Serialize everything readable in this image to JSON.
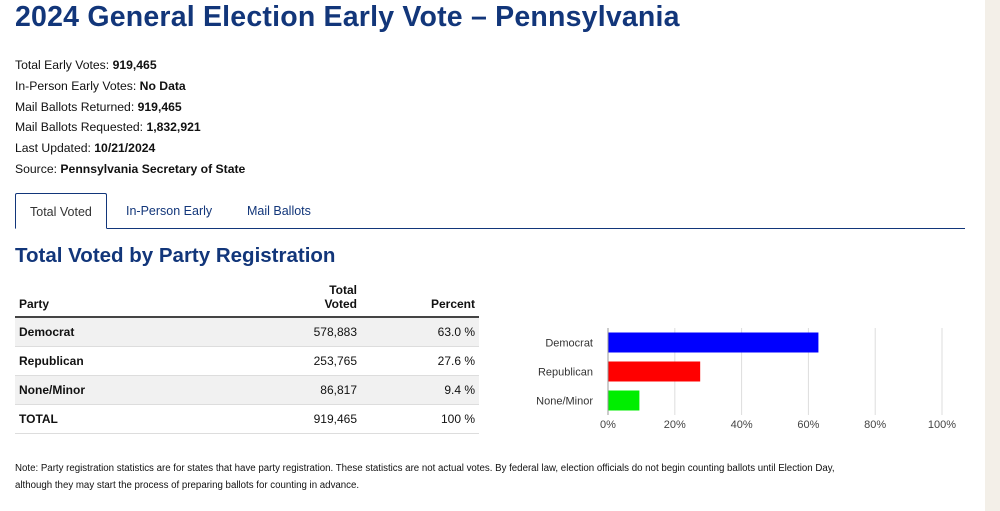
{
  "title": "2024 General Election Early Vote – Pennsylvania",
  "stats": [
    {
      "label": "Total Early Votes:",
      "value": "919,465"
    },
    {
      "label": "In-Person Early Votes:",
      "value": "No Data"
    },
    {
      "label": "Mail Ballots Returned:",
      "value": "919,465"
    },
    {
      "label": "Mail Ballots Requested:",
      "value": "1,832,921"
    },
    {
      "label": "Last Updated:",
      "value": "10/21/2024"
    },
    {
      "label": "Source:",
      "value": "Pennsylvania Secretary of State"
    }
  ],
  "tabs": [
    {
      "label": "Total Voted",
      "active": true
    },
    {
      "label": "In-Person Early",
      "active": false
    },
    {
      "label": "Mail Ballots",
      "active": false
    }
  ],
  "section_title": "Total Voted by Party Registration",
  "table": {
    "headers": {
      "party": "Party",
      "total_line1": "Total",
      "total_line2": "Voted",
      "percent": "Percent"
    },
    "rows": [
      {
        "party": "Democrat",
        "total": "578,883",
        "percent": "63.0 %"
      },
      {
        "party": "Republican",
        "total": "253,765",
        "percent": "27.6 %"
      },
      {
        "party": "None/Minor",
        "total": "86,817",
        "percent": "9.4 %"
      }
    ],
    "total_row": {
      "party": "TOTAL",
      "total": "919,465",
      "percent": "100 %"
    }
  },
  "chart_data": {
    "type": "bar",
    "orientation": "horizontal",
    "categories": [
      "Democrat",
      "Republican",
      "None/Minor"
    ],
    "values": [
      63.0,
      27.6,
      9.4
    ],
    "colors": [
      "#0000ff",
      "#ff0000",
      "#00ee00"
    ],
    "xlim": [
      0,
      100
    ],
    "xticks": [
      "0%",
      "20%",
      "40%",
      "60%",
      "80%",
      "100%"
    ],
    "grid": true,
    "title": "",
    "xlabel": "",
    "ylabel": ""
  },
  "note_line1": "Note: Party registration statistics are for states that have party registration. These statistics are not actual votes. By federal law, election officials do not begin counting ballots until Election Day,",
  "note_line2": "although they may start the process of preparing ballots for counting in advance."
}
